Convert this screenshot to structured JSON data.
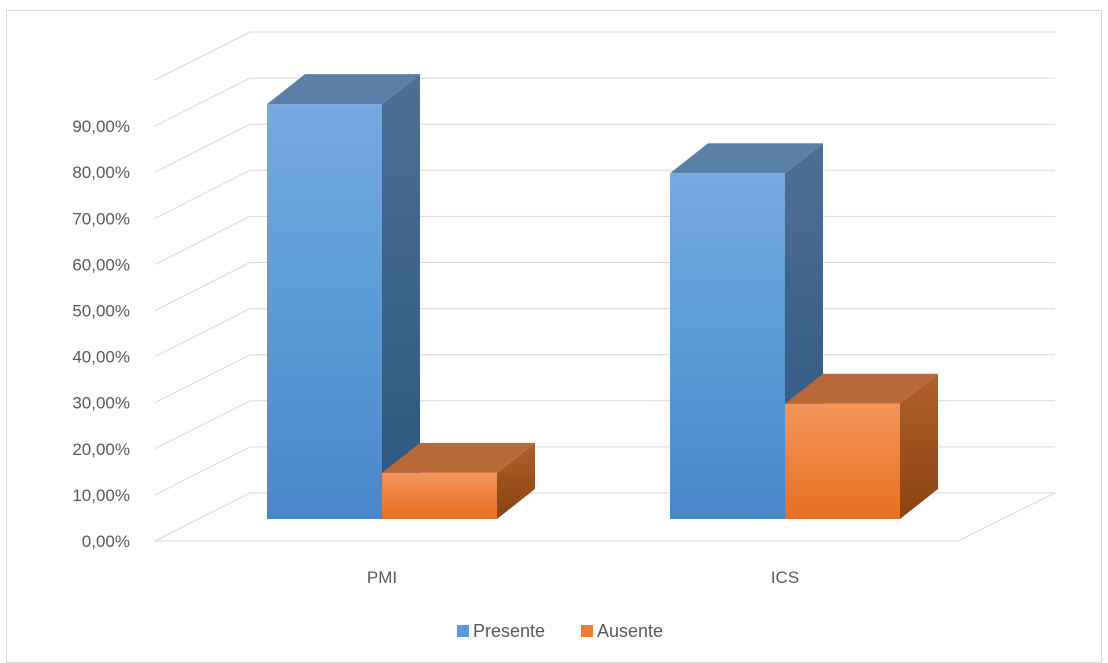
{
  "chart_data": {
    "type": "bar",
    "style": "3d-clustered-column",
    "categories": [
      "PMI",
      "ICS"
    ],
    "series": [
      {
        "name": "Presente",
        "values": [
          0.9,
          0.75
        ],
        "color": "#5b9bd5"
      },
      {
        "name": "Ausente",
        "values": [
          0.1,
          0.25
        ],
        "color": "#ed7d31"
      }
    ],
    "yticks": [
      "0,00%",
      "10,00%",
      "20,00%",
      "30,00%",
      "40,00%",
      "50,00%",
      "60,00%",
      "70,00%",
      "80,00%",
      "90,00%"
    ],
    "ylim": [
      0,
      1.0
    ],
    "grid": true,
    "legend_position": "bottom"
  }
}
